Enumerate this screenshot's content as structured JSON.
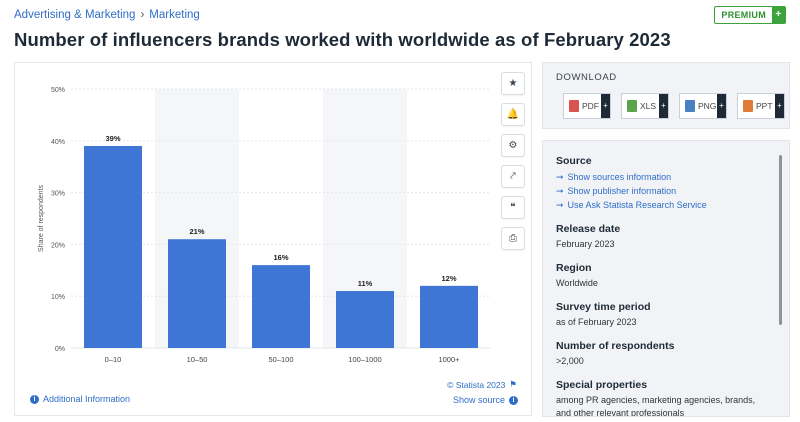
{
  "breadcrumb": [
    "Advertising & Marketing",
    "Marketing"
  ],
  "breadcrumb_sep": "›",
  "premium": {
    "label": "PREMIUM",
    "plus": "+"
  },
  "title": "Number of influencers brands worked with worldwide as of February 2023",
  "chart_data": {
    "type": "bar",
    "title": "Number of influencers brands worked with worldwide as of February 2023",
    "categories": [
      "0–10",
      "10–50",
      "50–100",
      "100–1000",
      "1000+"
    ],
    "values": [
      39,
      21,
      16,
      11,
      12
    ],
    "data_labels": [
      "39%",
      "21%",
      "16%",
      "11%",
      "12%"
    ],
    "ylabel": "Share of respondents",
    "xlabel": "",
    "ylim": [
      0,
      50
    ],
    "yticks": [
      "0%",
      "10%",
      "20%",
      "30%",
      "40%",
      "50%"
    ],
    "bar_color": "#3f76d6",
    "band_color": "#f5f6f8",
    "grid": true
  },
  "tools": [
    "star-icon",
    "bell-icon",
    "gear-icon",
    "share-icon",
    "quote-icon",
    "print-icon"
  ],
  "tool_glyphs": [
    "★",
    "🔔",
    "⚙",
    "⤤",
    "❝",
    "⎙"
  ],
  "additional_info": "Additional Information",
  "copyright": "© Statista 2023",
  "show_source": "Show source",
  "download": {
    "title": "DOWNLOAD",
    "buttons": [
      {
        "label": "PDF",
        "color": "#d9534f",
        "plus": "+"
      },
      {
        "label": "XLS",
        "color": "#5aa54b",
        "plus": "+"
      },
      {
        "label": "PNG",
        "color": "#4a7fc1",
        "plus": "+"
      },
      {
        "label": "PPT",
        "color": "#e07b39",
        "plus": "+"
      }
    ]
  },
  "source": {
    "heading": "Source",
    "links": [
      "Show sources information",
      "Show publisher information",
      "Use Ask Statista Research Service"
    ],
    "arrow": "➞",
    "fields": [
      {
        "label": "Release date",
        "value": "February 2023"
      },
      {
        "label": "Region",
        "value": "Worldwide"
      },
      {
        "label": "Survey time period",
        "value": "as of February 2023"
      },
      {
        "label": "Number of respondents",
        "value": ">2,000"
      },
      {
        "label": "Special properties",
        "value": "among PR agencies, marketing agencies, brands, and other relevant professionals"
      }
    ]
  }
}
